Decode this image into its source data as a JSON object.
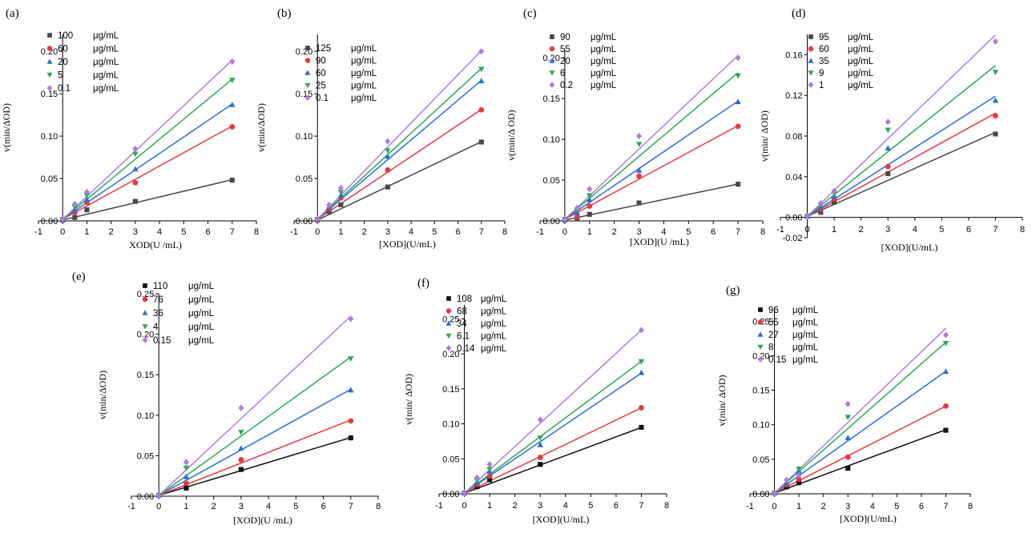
{
  "chart_data": [
    {
      "id": "a",
      "type": "scatter",
      "panel_label": "(a)",
      "xlabel": "XOD(U  /mL)",
      "ylabel": "v(min/ΔOD)",
      "xlim": [
        -1,
        8
      ],
      "ylim": [
        0,
        0.22
      ],
      "xticks": [
        -1,
        0,
        1,
        2,
        3,
        4,
        5,
        6,
        7,
        8
      ],
      "yticks": [
        0,
        0.05,
        0.1,
        0.15,
        0.2
      ],
      "ytick_labels": [
        "0.00",
        "0.05",
        "0.10",
        "0.15",
        "0.20"
      ],
      "legend_position": "top-left",
      "series": [
        {
          "name": "100",
          "unit": "μg/mL",
          "color": "#474747",
          "marker": "square",
          "x": [
            0,
            0.5,
            1,
            3,
            7
          ],
          "y": [
            0.001,
            0.004,
            0.013,
            0.023,
            0.048
          ],
          "fit": [
            0.001,
            0.0068
          ]
        },
        {
          "name": "60",
          "unit": "μg/mL",
          "color": "#e8373f",
          "marker": "circle",
          "x": [
            0,
            0.5,
            1,
            3,
            7
          ],
          "y": [
            0.002,
            0.01,
            0.022,
            0.045,
            0.111
          ],
          "fit": [
            0.002,
            0.0157
          ]
        },
        {
          "name": "20",
          "unit": "μg/mL",
          "color": "#2a6fd6",
          "marker": "triangle-up",
          "x": [
            0,
            0.5,
            1,
            3,
            7
          ],
          "y": [
            0.002,
            0.013,
            0.025,
            0.061,
            0.137
          ],
          "fit": [
            0.002,
            0.0194
          ]
        },
        {
          "name": "5",
          "unit": "μg/mL",
          "color": "#2aaa55",
          "marker": "triangle-down",
          "x": [
            0,
            0.5,
            1,
            3,
            7
          ],
          "y": [
            0.002,
            0.016,
            0.03,
            0.079,
            0.166
          ],
          "fit": [
            0.002,
            0.0236
          ]
        },
        {
          "name": "0.1",
          "unit": "μg/mL",
          "color": "#b07cdc",
          "marker": "diamond",
          "x": [
            0,
            0.5,
            1,
            3,
            7
          ],
          "y": [
            0.002,
            0.02,
            0.034,
            0.085,
            0.188
          ],
          "fit": [
            0.002,
            0.0268
          ]
        }
      ]
    },
    {
      "id": "b",
      "type": "scatter",
      "panel_label": "(b)",
      "xlabel": "[XOD](U/mL)",
      "ylabel": "v(min/ΔOD)",
      "xlim": [
        -1,
        8
      ],
      "ylim": [
        0,
        0.22
      ],
      "xticks": [
        -1,
        0,
        1,
        2,
        3,
        4,
        5,
        6,
        7,
        8
      ],
      "yticks": [
        0,
        0.05,
        0.1,
        0.15,
        0.2
      ],
      "ytick_labels": [
        "0.00",
        "0.05",
        "0.10",
        "0.15",
        "0.20"
      ],
      "legend_position": "top-left",
      "series": [
        {
          "name": "125",
          "unit": "μg/mL",
          "color": "#474747",
          "marker": "square",
          "x": [
            0,
            0.5,
            1,
            3,
            7
          ],
          "y": [
            0.001,
            0.011,
            0.019,
            0.04,
            0.093
          ],
          "fit": [
            0.001,
            0.0132
          ]
        },
        {
          "name": "90",
          "unit": "μg/mL",
          "color": "#e8373f",
          "marker": "circle",
          "x": [
            0,
            0.5,
            1,
            3,
            7
          ],
          "y": [
            0.002,
            0.014,
            0.027,
            0.06,
            0.131
          ],
          "fit": [
            0.002,
            0.0185
          ]
        },
        {
          "name": "60",
          "unit": "μg/mL",
          "color": "#2a6fd6",
          "marker": "triangle-up",
          "x": [
            0,
            0.5,
            1,
            3,
            7
          ],
          "y": [
            0.002,
            0.016,
            0.03,
            0.076,
            0.165
          ],
          "fit": [
            0.002,
            0.0234
          ]
        },
        {
          "name": "25",
          "unit": "μg/mL",
          "color": "#2aaa55",
          "marker": "triangle-down",
          "x": [
            0,
            0.5,
            1,
            3,
            7
          ],
          "y": [
            0.002,
            0.017,
            0.034,
            0.083,
            0.179
          ],
          "fit": [
            0.002,
            0.0254
          ]
        },
        {
          "name": "0.1",
          "unit": "μg/mL",
          "color": "#b07cdc",
          "marker": "diamond",
          "x": [
            0,
            0.5,
            1,
            3,
            7
          ],
          "y": [
            0.002,
            0.019,
            0.039,
            0.094,
            0.2
          ],
          "fit": [
            0.002,
            0.0284
          ]
        }
      ]
    },
    {
      "id": "c",
      "type": "scatter",
      "panel_label": "(c)",
      "xlabel": "[XOD](U  /mL)",
      "ylabel": "v(min/Δ OD)",
      "xlim": [
        -1,
        8
      ],
      "ylim": [
        0,
        0.21
      ],
      "xticks": [
        -1,
        0,
        1,
        2,
        3,
        4,
        5,
        6,
        7,
        8
      ],
      "yticks": [
        0,
        0.05,
        0.1,
        0.15,
        0.2
      ],
      "ytick_labels": [
        "0.00",
        "0.05",
        "0.10",
        "0.15",
        "0.20"
      ],
      "legend_position": "top-left",
      "series": [
        {
          "name": "90",
          "unit": "μg/mL",
          "color": "#474747",
          "marker": "square",
          "x": [
            0,
            0.5,
            1,
            3,
            7
          ],
          "y": [
            0.001,
            0.003,
            0.008,
            0.022,
            0.045
          ],
          "fit": [
            0.001,
            0.0063
          ]
        },
        {
          "name": "55",
          "unit": "μg/mL",
          "color": "#e8373f",
          "marker": "circle",
          "x": [
            0,
            0.5,
            1,
            3,
            7
          ],
          "y": [
            0.002,
            0.005,
            0.018,
            0.055,
            0.116
          ],
          "fit": [
            0.002,
            0.0164
          ]
        },
        {
          "name": "20",
          "unit": "μg/mL",
          "color": "#2a6fd6",
          "marker": "triangle-up",
          "x": [
            0,
            0.5,
            1,
            3,
            7
          ],
          "y": [
            0.002,
            0.01,
            0.026,
            0.062,
            0.146
          ],
          "fit": [
            0.002,
            0.0207
          ]
        },
        {
          "name": "6",
          "unit": "μg/mL",
          "color": "#2aaa55",
          "marker": "triangle-down",
          "x": [
            0,
            0.5,
            1,
            3,
            7
          ],
          "y": [
            0.002,
            0.013,
            0.031,
            0.094,
            0.178
          ],
          "fit": [
            0.002,
            0.0257
          ]
        },
        {
          "name": "0.2",
          "unit": "μg/mL",
          "color": "#b07cdc",
          "marker": "diamond",
          "x": [
            0,
            0.5,
            1,
            3,
            7
          ],
          "y": [
            0.002,
            0.016,
            0.039,
            0.104,
            0.2
          ],
          "fit": [
            0.002,
            0.0287
          ]
        }
      ]
    },
    {
      "id": "d",
      "type": "scatter",
      "panel_label": "(d)",
      "xlabel": "[XOD](U/mL)",
      "ylabel": "v(min/ ΔOD)",
      "xlim": [
        -1,
        8
      ],
      "ylim": [
        -0.02,
        0.18
      ],
      "xticks": [
        -1,
        0,
        1,
        2,
        3,
        4,
        5,
        6,
        7,
        8
      ],
      "yticks": [
        -0.02,
        0,
        0.04,
        0.08,
        0.12,
        0.16
      ],
      "ytick_labels": [
        "-0.02",
        "0.00",
        "0.04",
        "0.08",
        "0.12",
        "0.16"
      ],
      "legend_position": "top-left",
      "series": [
        {
          "name": "95",
          "unit": "μg/mL",
          "color": "#474747",
          "marker": "square",
          "x": [
            0,
            0.5,
            1,
            3,
            7
          ],
          "y": [
            0.001,
            0.005,
            0.015,
            0.043,
            0.082
          ],
          "fit": [
            0.001,
            0.0118
          ]
        },
        {
          "name": "60",
          "unit": "μg/mL",
          "color": "#e8373f",
          "marker": "circle",
          "x": [
            0,
            0.5,
            1,
            3,
            7
          ],
          "y": [
            0.001,
            0.008,
            0.018,
            0.05,
            0.1
          ],
          "fit": [
            0.001,
            0.0145
          ]
        },
        {
          "name": "35",
          "unit": "μg/mL",
          "color": "#2a6fd6",
          "marker": "triangle-up",
          "x": [
            0,
            0.5,
            1,
            3,
            7
          ],
          "y": [
            0.001,
            0.01,
            0.021,
            0.068,
            0.115
          ],
          "fit": [
            0.001,
            0.0169
          ]
        },
        {
          "name": "9",
          "unit": "μg/mL",
          "color": "#2aaa55",
          "marker": "triangle-down",
          "x": [
            0,
            0.5,
            1,
            3,
            7
          ],
          "y": [
            0.001,
            0.012,
            0.024,
            0.086,
            0.143
          ],
          "fit": [
            0.001,
            0.0212
          ]
        },
        {
          "name": "1",
          "unit": "μg/mL",
          "color": "#b07cdc",
          "marker": "diamond",
          "x": [
            0,
            0.5,
            1,
            3,
            7
          ],
          "y": [
            0.001,
            0.014,
            0.026,
            0.094,
            0.173
          ],
          "fit": [
            0.001,
            0.0255
          ]
        }
      ]
    },
    {
      "id": "e",
      "type": "scatter",
      "panel_label": "(e)",
      "xlabel": "[XOD](U /mL)",
      "ylabel": "v(min/ΔOD)",
      "xlim": [
        -1,
        8
      ],
      "ylim": [
        0,
        0.25
      ],
      "xticks": [
        -1,
        0,
        1,
        2,
        3,
        4,
        5,
        6,
        7,
        8
      ],
      "yticks": [
        0,
        0.05,
        0.1,
        0.15,
        0.2,
        0.25
      ],
      "ytick_labels": [
        "0.00",
        "0.05",
        "0.10",
        "0.15",
        "0.20",
        "0.25"
      ],
      "legend_position": "top-left",
      "series": [
        {
          "name": "110",
          "unit": "μg/mL",
          "color": "#111111",
          "marker": "square",
          "x": [
            0,
            1,
            3,
            7
          ],
          "y": [
            0.001,
            0.01,
            0.033,
            0.072
          ],
          "fit": [
            0.001,
            0.0102
          ]
        },
        {
          "name": "76",
          "unit": "μg/mL",
          "color": "#e8373f",
          "marker": "circle",
          "x": [
            0,
            1,
            3,
            7
          ],
          "y": [
            0.001,
            0.016,
            0.045,
            0.093
          ],
          "fit": [
            0.001,
            0.0133
          ]
        },
        {
          "name": "36",
          "unit": "μg/mL",
          "color": "#2a6fd6",
          "marker": "triangle-up",
          "x": [
            0,
            1,
            3,
            7
          ],
          "y": [
            0.001,
            0.024,
            0.059,
            0.131
          ],
          "fit": [
            0.001,
            0.0187
          ]
        },
        {
          "name": "4",
          "unit": "μg/mL",
          "color": "#2aaa55",
          "marker": "triangle-down",
          "x": [
            0,
            1,
            3,
            7
          ],
          "y": [
            0.001,
            0.035,
            0.079,
            0.17
          ],
          "fit": [
            0.001,
            0.0244
          ]
        },
        {
          "name": "0.15",
          "unit": "μg/mL",
          "color": "#b07cdc",
          "marker": "diamond",
          "x": [
            0,
            1,
            3,
            7
          ],
          "y": [
            0.001,
            0.042,
            0.109,
            0.219
          ],
          "fit": [
            0.001,
            0.0316
          ]
        }
      ]
    },
    {
      "id": "f",
      "type": "scatter",
      "panel_label": "(f)",
      "xlabel": "[XOD](U/mL)",
      "ylabel": "v(min/ ΔOD)",
      "xlim": [
        -1,
        8
      ],
      "ylim": [
        0,
        0.27
      ],
      "xticks": [
        -1,
        0,
        1,
        2,
        3,
        4,
        5,
        6,
        7,
        8
      ],
      "yticks": [
        0,
        0.05,
        0.1,
        0.15,
        0.2,
        0.25
      ],
      "ytick_labels": [
        "0.00",
        "0.05",
        "0.10",
        "0.15",
        "0.20",
        "0.25"
      ],
      "legend_position": "top-left",
      "series": [
        {
          "name": "108",
          "unit": "μg/mL",
          "color": "#111111",
          "marker": "square",
          "x": [
            0,
            0.5,
            1,
            3,
            7
          ],
          "y": [
            0.001,
            0.01,
            0.02,
            0.042,
            0.095
          ],
          "fit": [
            0.001,
            0.0134
          ]
        },
        {
          "name": "68",
          "unit": "μg/mL",
          "color": "#e8373f",
          "marker": "circle",
          "x": [
            0,
            0.5,
            1,
            3,
            7
          ],
          "y": [
            0.001,
            0.013,
            0.025,
            0.052,
            0.123
          ],
          "fit": [
            0.001,
            0.0174
          ]
        },
        {
          "name": "34",
          "unit": "μg/mL",
          "color": "#2a6fd6",
          "marker": "triangle-up",
          "x": [
            0,
            0.5,
            1,
            3,
            7
          ],
          "y": [
            0.001,
            0.016,
            0.032,
            0.07,
            0.173
          ],
          "fit": [
            0.001,
            0.0245
          ]
        },
        {
          "name": "6.1",
          "unit": "μg/mL",
          "color": "#2aaa55",
          "marker": "triangle-down",
          "x": [
            0,
            0.5,
            1,
            3,
            7
          ],
          "y": [
            0.001,
            0.019,
            0.035,
            0.08,
            0.189
          ],
          "fit": [
            0.001,
            0.0269
          ]
        },
        {
          "name": "0.14",
          "unit": "μg/mL",
          "color": "#b07cdc",
          "marker": "diamond",
          "x": [
            0,
            0.5,
            1,
            3,
            7
          ],
          "y": [
            0.001,
            0.023,
            0.042,
            0.106,
            0.234
          ],
          "fit": [
            0.001,
            0.0333
          ]
        }
      ]
    },
    {
      "id": "g",
      "type": "scatter",
      "panel_label": "(g)",
      "xlabel": "[XOD](U/mL)",
      "ylabel": "v(min/ ΔOD)",
      "xlim": [
        -1,
        8
      ],
      "ylim": [
        0,
        0.27
      ],
      "xticks": [
        -1,
        0,
        1,
        2,
        3,
        4,
        5,
        6,
        7,
        8
      ],
      "yticks": [
        0,
        0.05,
        0.1,
        0.15,
        0.2,
        0.25
      ],
      "ytick_labels": [
        "0.00",
        "0.05",
        "0.10",
        "0.15",
        "0.20",
        "0.25"
      ],
      "legend_position": "top-left",
      "series": [
        {
          "name": "96",
          "unit": "μg/mL",
          "color": "#111111",
          "marker": "square",
          "x": [
            0,
            0.5,
            1,
            3,
            7
          ],
          "y": [
            0.001,
            0.01,
            0.016,
            0.037,
            0.092
          ],
          "fit": [
            0.001,
            0.0131
          ]
        },
        {
          "name": "55",
          "unit": "μg/mL",
          "color": "#e8373f",
          "marker": "circle",
          "x": [
            0,
            0.5,
            1,
            3,
            7
          ],
          "y": [
            0.001,
            0.013,
            0.021,
            0.053,
            0.127
          ],
          "fit": [
            0.001,
            0.018
          ]
        },
        {
          "name": "27",
          "unit": "μg/mL",
          "color": "#2a6fd6",
          "marker": "triangle-up",
          "x": [
            0,
            0.5,
            1,
            3,
            7
          ],
          "y": [
            0.001,
            0.016,
            0.033,
            0.081,
            0.177
          ],
          "fit": [
            0.001,
            0.0252
          ]
        },
        {
          "name": "8",
          "unit": "μg/mL",
          "color": "#2aaa55",
          "marker": "triangle-down",
          "x": [
            0,
            0.5,
            1,
            3,
            7
          ],
          "y": [
            0.001,
            0.018,
            0.036,
            0.111,
            0.218
          ],
          "fit": [
            0.001,
            0.0312
          ]
        },
        {
          "name": "0.15",
          "unit": "μg/mL",
          "color": "#b07cdc",
          "marker": "diamond",
          "x": [
            0,
            0.5,
            1,
            3,
            7
          ],
          "y": [
            0.001,
            0.02,
            0.027,
            0.13,
            0.23
          ],
          "fit": [
            0.001,
            0.0341
          ]
        }
      ]
    }
  ]
}
